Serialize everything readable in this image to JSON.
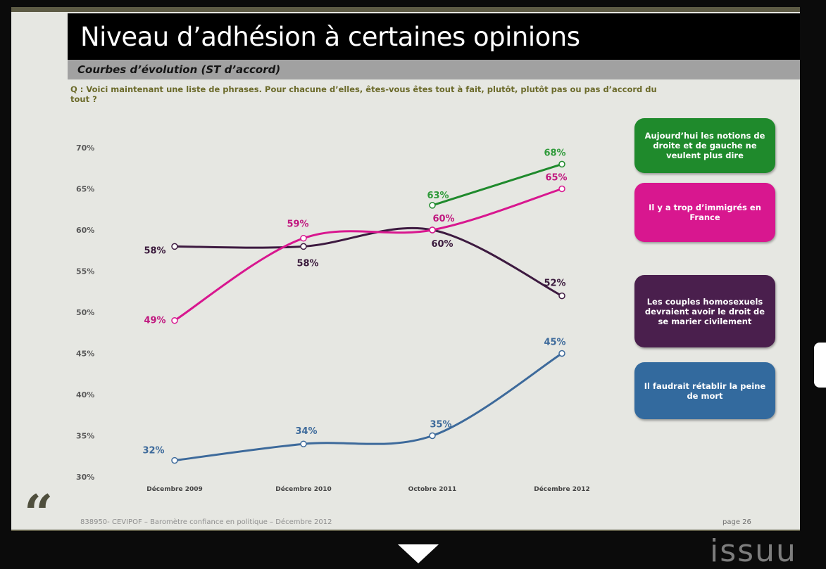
{
  "slide": {
    "title": "Niveau d’adhésion à certaines opinions",
    "subtitle": "Courbes d’évolution (ST d’accord)",
    "question": "Q : Voici maintenant une liste de phrases. Pour chacune d’elles, êtes-vous êtes tout à fait, plutôt, plutôt pas ou pas d’accord du tout ?",
    "footer_note": "838950- CEVIPOF – Baromètre confiance en politique – Décembre 2012",
    "page_number": "page 26"
  },
  "chart_data": {
    "type": "line",
    "categories": [
      "Décembre 2009",
      "Décembre 2010",
      "Octobre 2011",
      "Décembre 2012"
    ],
    "ylim": [
      30,
      70
    ],
    "yticks": [
      "30%",
      "35%",
      "40%",
      "45%",
      "50%",
      "55%",
      "60%",
      "65%",
      "70%"
    ],
    "grid": false,
    "legend_position": "right",
    "series": [
      {
        "name": "Aujourd’hui les notions de droite et de gauche ne veulent plus dire",
        "color": "#1f8a2c",
        "label_color": "#2f9a3a",
        "values": [
          null,
          null,
          63,
          68
        ],
        "labels": [
          null,
          null,
          "63%",
          "68%"
        ]
      },
      {
        "name": "Il y a trop d’immigrés en France",
        "color": "#d8178f",
        "label_color": "#c0187f",
        "values": [
          49,
          59,
          60,
          65
        ],
        "labels": [
          "49%",
          "59%",
          "60%",
          "65%"
        ]
      },
      {
        "name": "Les couples homosexuels devraient avoir le droit de se marier civilement",
        "color": "#3d1a40",
        "label_color": "#3a1a3c",
        "values": [
          58,
          58,
          60,
          52
        ],
        "labels": [
          "58%",
          "58%",
          "60%",
          "52%"
        ]
      },
      {
        "name": "Il faudrait rétablir la peine de mort",
        "color": "#3d6a9b",
        "label_color": "#3d6a9b",
        "values": [
          32,
          34,
          35,
          45
        ],
        "labels": [
          "32%",
          "34%",
          "35%",
          "45%"
        ]
      }
    ]
  },
  "brand": {
    "logo": "issuu"
  }
}
